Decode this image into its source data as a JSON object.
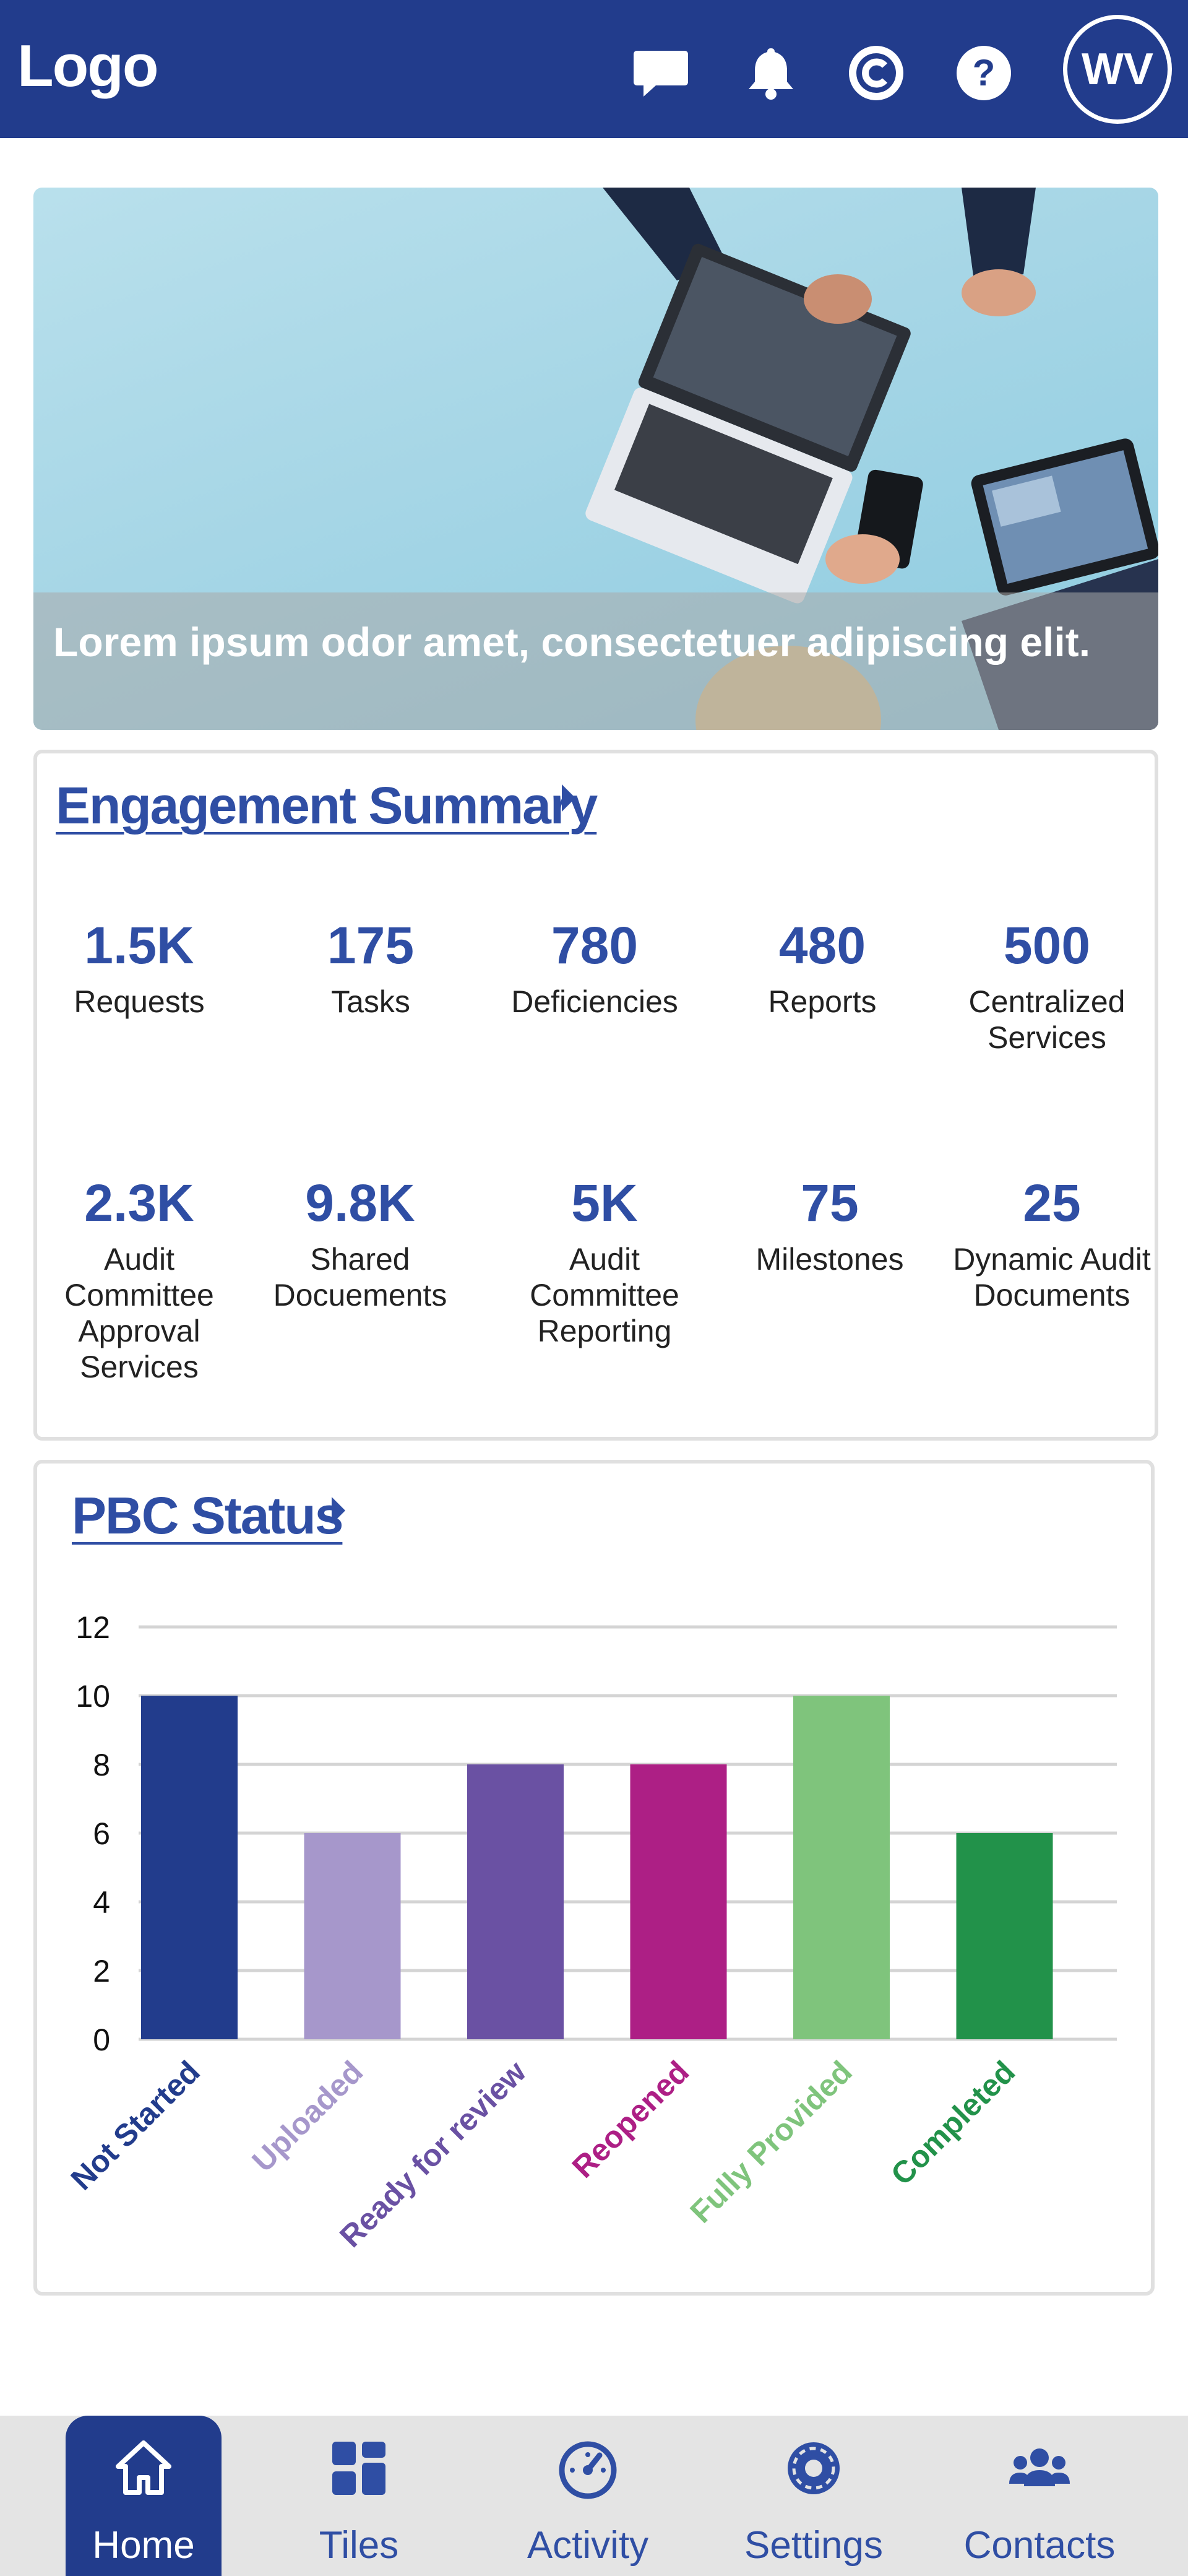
{
  "header": {
    "logo": "Logo",
    "icons": [
      "chat-icon",
      "bell-icon",
      "copyright-icon",
      "help-icon"
    ],
    "avatar_initials": "WV",
    "background": "#223c8c"
  },
  "hero": {
    "caption": "Lorem ipsum odor amet, consectetuer adipiscing elit."
  },
  "engagement_summary": {
    "title": "Engagement Summary",
    "stats": [
      {
        "value": "1.5K",
        "label": "Requests"
      },
      {
        "value": "175",
        "label": "Tasks"
      },
      {
        "value": "780",
        "label": "Deficiencies"
      },
      {
        "value": "480",
        "label": "Reports"
      },
      {
        "value": "500",
        "label": "Centralized Services"
      },
      {
        "value": "2.3K",
        "label": "Audit Committee Approval Services"
      },
      {
        "value": "9.8K",
        "label": "Shared Docuements"
      },
      {
        "value": "5K",
        "label": "Audit Committee Reporting"
      },
      {
        "value": "75",
        "label": "Milestones"
      },
      {
        "value": "25",
        "label": "Dynamic Audit Documents"
      }
    ]
  },
  "pbc_status": {
    "title": "PBC Status"
  },
  "chart_data": {
    "type": "bar",
    "title": "PBC Status",
    "categories": [
      "Not Started",
      "Uploaded",
      "Ready for review",
      "Reopened",
      "Fully Provided",
      "Completed"
    ],
    "values": [
      10,
      6,
      8,
      8,
      10,
      6
    ],
    "colors": [
      "#223c8c",
      "#a697cb",
      "#6a51a3",
      "#ad1f85",
      "#7fc47c",
      "#22924a"
    ],
    "ylim": [
      0,
      12
    ],
    "yticks": [
      0,
      2,
      4,
      6,
      8,
      10,
      12
    ],
    "grid": true,
    "xlabel": "",
    "ylabel": ""
  },
  "bottom_nav": {
    "items": [
      {
        "label": "Home",
        "icon": "home-icon",
        "active": true
      },
      {
        "label": "Tiles",
        "icon": "tiles-icon",
        "active": false
      },
      {
        "label": "Activity",
        "icon": "activity-icon",
        "active": false
      },
      {
        "label": "Settings",
        "icon": "settings-icon",
        "active": false
      },
      {
        "label": "Contacts",
        "icon": "contacts-icon",
        "active": false
      }
    ],
    "accent": "#2f4ea4"
  }
}
